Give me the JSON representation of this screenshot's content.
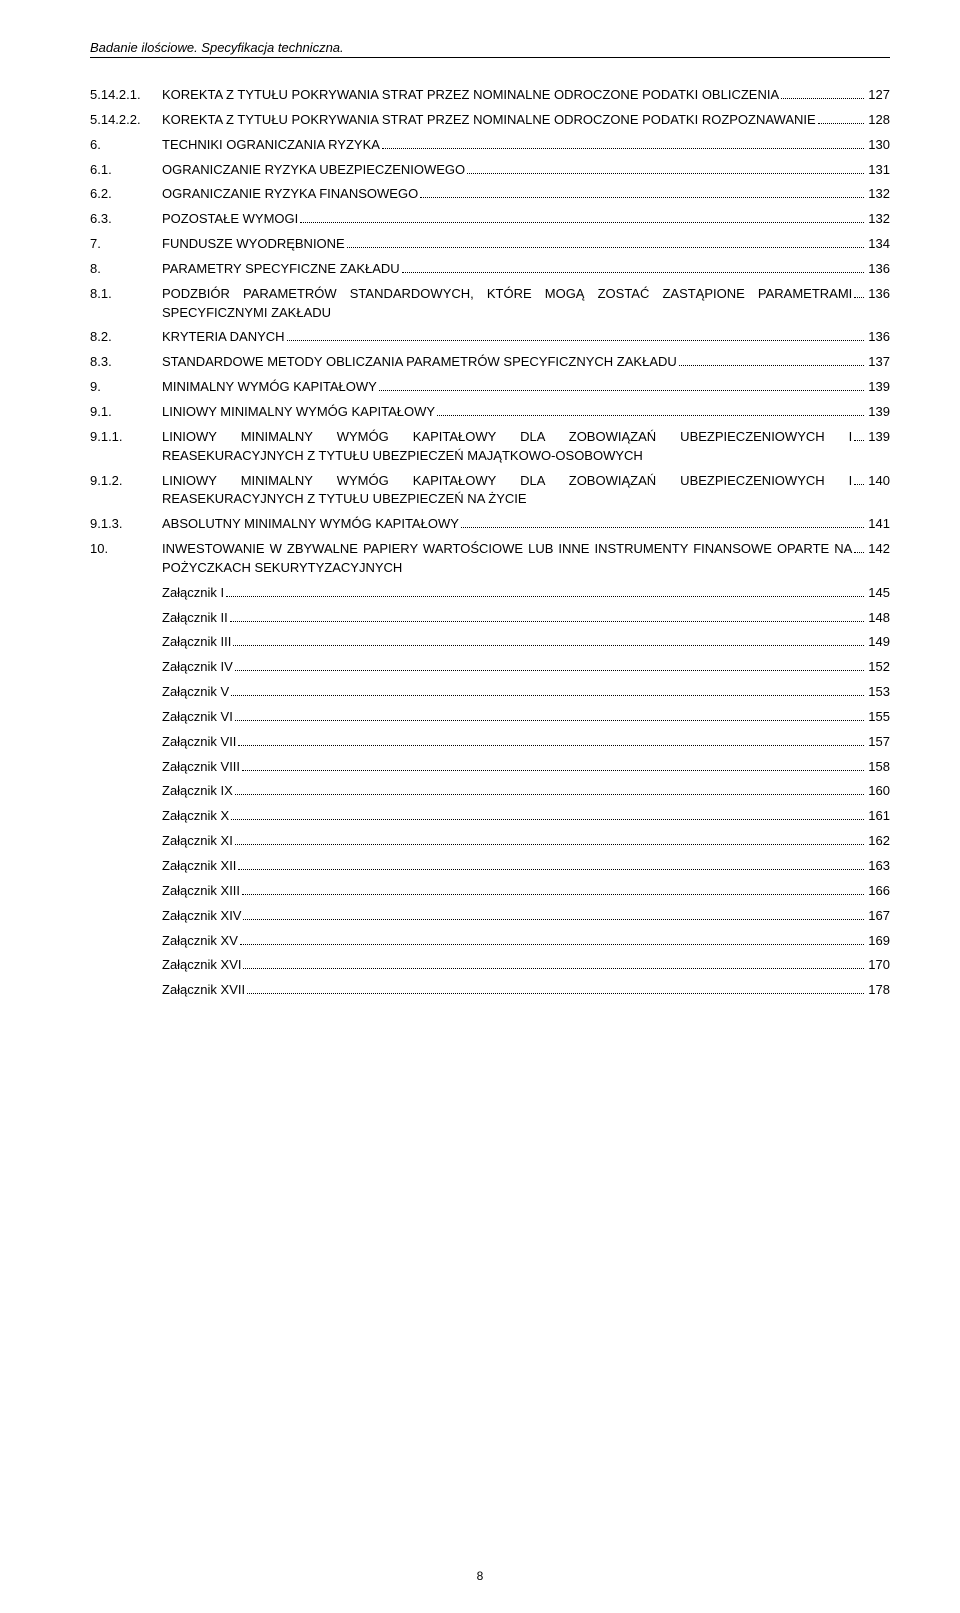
{
  "header": "Badanie ilościowe. Specyfikacja techniczna.",
  "pageNumber": "8",
  "entries": [
    {
      "num": "5.14.2.1.",
      "text": "KOREKTA  Z  TYTUŁU  POKRYWANIA  STRAT  PRZEZ  NOMINALNE  ODROCZONE PODATKI OBLICZENIA",
      "page": "127"
    },
    {
      "num": "5.14.2.2.",
      "text": "KOREKTA  Z  TYTUŁU  POKRYWANIA  STRAT  PRZEZ  NOMINALNE  ODROCZONE PODATKI ROZPOZNAWANIE",
      "page": "128"
    },
    {
      "num": "6.",
      "text": "TECHNIKI OGRANICZANIA RYZYKA",
      "page": "130"
    },
    {
      "num": "6.1.",
      "text": "OGRANICZANIE RYZYKA UBEZPIECZENIOWEGO",
      "page": "131"
    },
    {
      "num": "6.2.",
      "text": "OGRANICZANIE RYZYKA FINANSOWEGO",
      "page": "132"
    },
    {
      "num": "6.3.",
      "text": "POZOSTAŁE WYMOGI",
      "page": "132"
    },
    {
      "num": "7.",
      "text": "FUNDUSZE WYODRĘBNIONE",
      "page": "134"
    },
    {
      "num": "8.",
      "text": "PARAMETRY SPECYFICZNE ZAKŁADU",
      "page": "136"
    },
    {
      "num": "8.1.",
      "text": "PODZBIÓR   PARAMETRÓW   STANDARDOWYCH,   KTÓRE   MOGĄ   ZOSTAĆ   ZASTĄPIONE PARAMETRAMI SPECYFICZNYMI ZAKŁADU",
      "page": "136"
    },
    {
      "num": "8.2.",
      "text": "KRYTERIA DANYCH",
      "page": "136"
    },
    {
      "num": "8.3.",
      "text": "STANDARDOWE METODY OBLICZANIA PARAMETRÓW SPECYFICZNYCH ZAKŁADU",
      "page": "137"
    },
    {
      "num": "9.",
      "text": "MINIMALNY WYMÓG KAPITAŁOWY",
      "page": "139"
    },
    {
      "num": "9.1.",
      "text": "LINIOWY MINIMALNY WYMÓG KAPITAŁOWY",
      "page": "139"
    },
    {
      "num": "9.1.1.",
      "text": "LINIOWY  MINIMALNY  WYMÓG  KAPITAŁOWY  DLA  ZOBOWIĄZAŃ  UBEZPIECZENIOWYCH  I REASEKURACYJNYCH Z TYTUŁU UBEZPIECZEŃ MAJĄTKOWO-OSOBOWYCH",
      "page": "139"
    },
    {
      "num": "9.1.2.",
      "text": "LINIOWY  MINIMALNY  WYMÓG  KAPITAŁOWY  DLA  ZOBOWIĄZAŃ  UBEZPIECZENIOWYCH  I REASEKURACYJNYCH Z TYTUŁU UBEZPIECZEŃ NA ŻYCIE",
      "page": "140"
    },
    {
      "num": "9.1.3.",
      "text": "ABSOLUTNY MINIMALNY WYMÓG KAPITAŁOWY",
      "page": "141"
    },
    {
      "num": "10.",
      "text": "INWESTOWANIE   W   ZBYWALNE   PAPIERY   WARTOŚCIOWE   LUB   INNE   INSTRUMENTY FINANSOWE OPARTE NA POŻYCZKACH SEKURYTYZACYJNYCH",
      "page": "142"
    },
    {
      "num": "",
      "text": "Załącznik I",
      "page": "145"
    },
    {
      "num": "",
      "text": "Załącznik II",
      "page": "148"
    },
    {
      "num": "",
      "text": "Załącznik III",
      "page": "149"
    },
    {
      "num": "",
      "text": "Załącznik IV",
      "page": "152"
    },
    {
      "num": "",
      "text": "Załącznik V",
      "page": "153"
    },
    {
      "num": "",
      "text": "Załącznik VI",
      "page": "155"
    },
    {
      "num": "",
      "text": "Załącznik VII",
      "page": "157"
    },
    {
      "num": "",
      "text": "Załącznik VIII",
      "page": "158"
    },
    {
      "num": "",
      "text": "Załącznik IX",
      "page": "160"
    },
    {
      "num": "",
      "text": "Załącznik X",
      "page": "161"
    },
    {
      "num": "",
      "text": "Załącznik XI",
      "page": "162"
    },
    {
      "num": "",
      "text": "Załącznik XII",
      "page": "163"
    },
    {
      "num": "",
      "text": "Załącznik XIII",
      "page": "166"
    },
    {
      "num": "",
      "text": "Załącznik XIV",
      "page": "167"
    },
    {
      "num": "",
      "text": "Załącznik XV",
      "page": "169"
    },
    {
      "num": "",
      "text": "Załącznik XVI",
      "page": "170"
    },
    {
      "num": "",
      "text": "Załącznik XVII",
      "page": "178"
    }
  ]
}
